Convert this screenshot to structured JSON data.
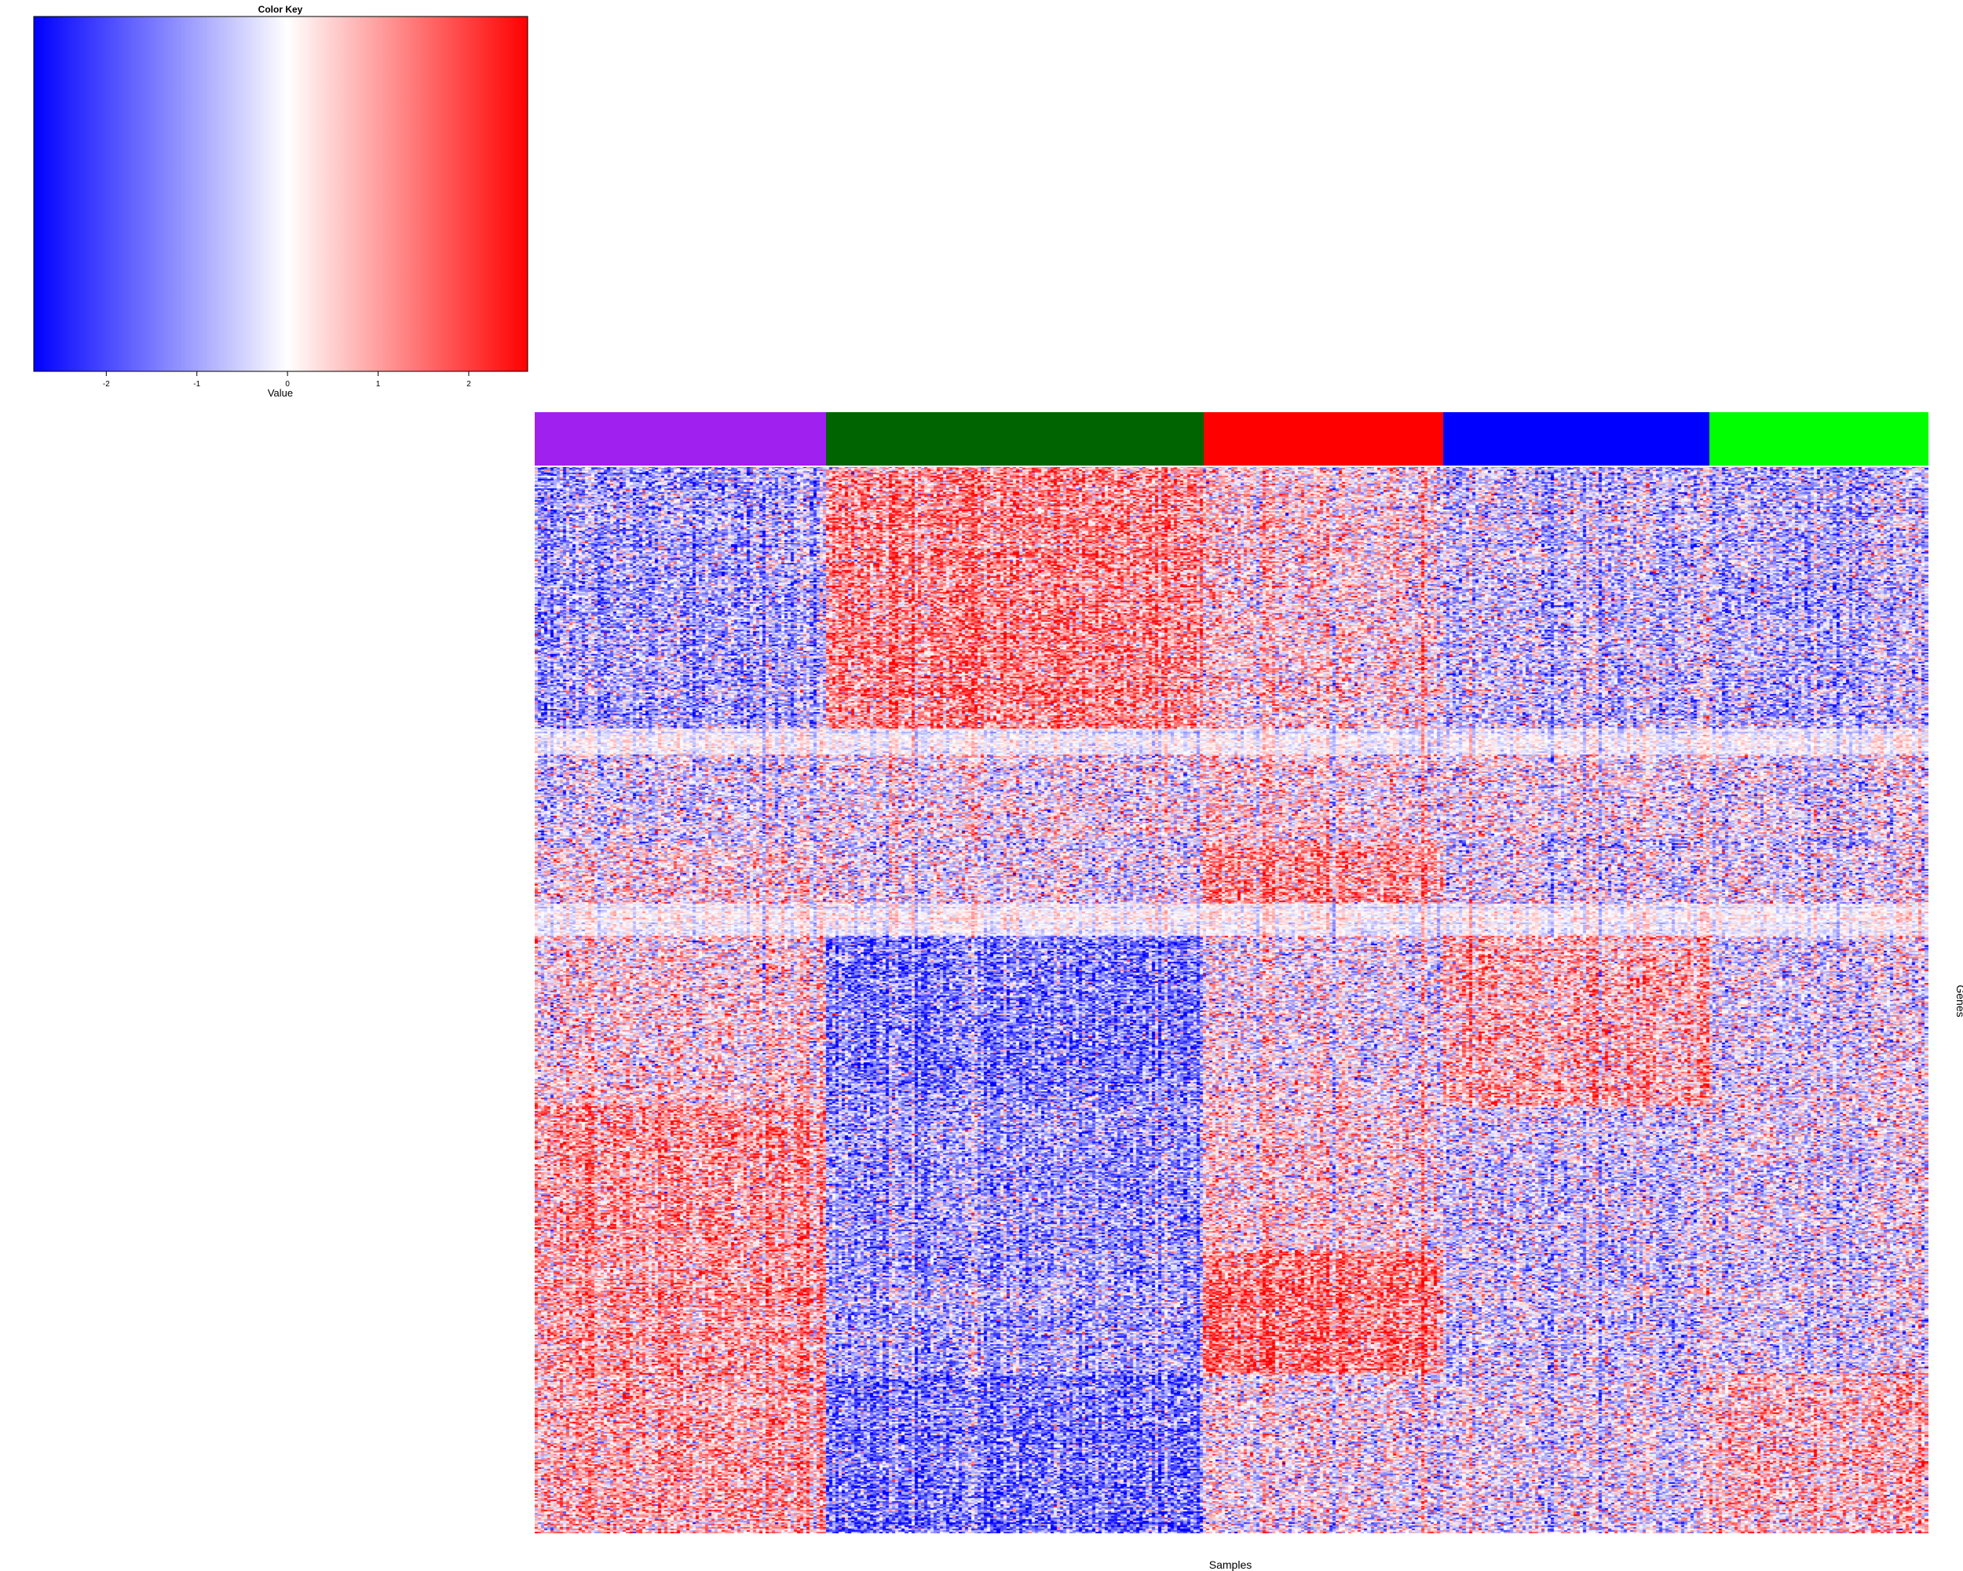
{
  "color_key": {
    "title": "Color Key",
    "xlabel": "Value",
    "ticks": [
      -2,
      -1,
      0,
      1,
      2
    ],
    "range": [
      -2.8,
      2.65
    ],
    "low_color": "#0000ff",
    "mid_color": "#ffffff",
    "high_color": "#ff0000"
  },
  "chart_data": {
    "type": "heatmap",
    "xlabel": "Samples",
    "ylabel": "Genes",
    "value_range": [
      -2.8,
      2.65
    ],
    "colorscale": [
      "#0000ff",
      "#ffffff",
      "#ff0000"
    ],
    "column_groups": [
      {
        "color": "#a020f0",
        "fraction": 0.209
      },
      {
        "color": "#006400",
        "fraction": 0.271
      },
      {
        "color": "#ff0000",
        "fraction": 0.172
      },
      {
        "color": "#0000ff",
        "fraction": 0.191
      },
      {
        "color": "#00ff00",
        "fraction": 0.157
      }
    ],
    "row_blocks": [
      {
        "fraction": 0.245,
        "means": [
          -0.9,
          1.2,
          0.3,
          -0.5,
          -0.7
        ]
      },
      {
        "fraction": 0.025,
        "means": [
          0.0,
          0.0,
          0.0,
          0.0,
          0.0
        ]
      },
      {
        "fraction": 0.08,
        "means": [
          -0.3,
          0.0,
          0.2,
          0.0,
          -0.2
        ]
      },
      {
        "fraction": 0.06,
        "means": [
          0.1,
          -0.2,
          1.0,
          -0.3,
          -0.3
        ]
      },
      {
        "fraction": 0.03,
        "means": [
          0.0,
          0.0,
          0.0,
          0.0,
          0.0
        ]
      },
      {
        "fraction": 0.16,
        "means": [
          0.3,
          -1.3,
          0.0,
          0.8,
          -0.2
        ]
      },
      {
        "fraction": 0.135,
        "means": [
          1.0,
          -1.0,
          0.3,
          -0.4,
          -0.2
        ]
      },
      {
        "fraction": 0.115,
        "means": [
          0.9,
          -0.9,
          1.4,
          -0.4,
          -0.3
        ]
      },
      {
        "fraction": 0.15,
        "means": [
          0.8,
          -1.4,
          0.0,
          -0.2,
          0.6
        ]
      }
    ]
  }
}
